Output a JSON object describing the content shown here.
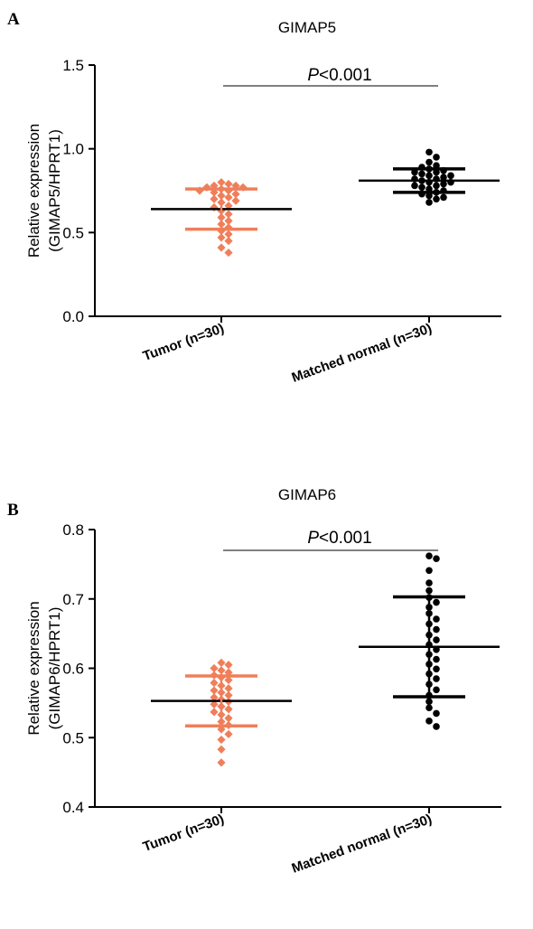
{
  "colors": {
    "tumor": "#ef7f5a",
    "normal": "#000000",
    "axis": "#000000"
  },
  "chart_data": [
    {
      "panel_label": "A",
      "type": "scatter",
      "title": "GIMAP5",
      "ylabel": [
        "Relative expression",
        "(GIMAP5/HPRT1)"
      ],
      "xlabel": "",
      "ylim": [
        0,
        1.5
      ],
      "yticks": [
        "0.0",
        "0.5",
        "1.0",
        "1.5"
      ],
      "ytick_values": [
        0.0,
        0.5,
        1.0,
        1.5
      ],
      "categories": [
        "Tumor (n=30)",
        "Matched normal (n=30)"
      ],
      "significance": {
        "italic": "P",
        "text": "<0.001"
      },
      "grid": false,
      "series": [
        {
          "mean": 0.64,
          "sd_low": 0.52,
          "sd_high": 0.76,
          "marker": "diamond",
          "color": "#ef7f5a",
          "values": [
            0.8,
            0.79,
            0.78,
            0.78,
            0.77,
            0.77,
            0.76,
            0.75,
            0.75,
            0.74,
            0.73,
            0.72,
            0.71,
            0.7,
            0.69,
            0.68,
            0.66,
            0.65,
            0.63,
            0.61,
            0.59,
            0.57,
            0.55,
            0.53,
            0.51,
            0.49,
            0.47,
            0.45,
            0.41,
            0.38
          ]
        },
        {
          "mean": 0.81,
          "sd_low": 0.74,
          "sd_high": 0.88,
          "marker": "circle",
          "color": "#000000",
          "values": [
            0.98,
            0.95,
            0.92,
            0.9,
            0.89,
            0.88,
            0.87,
            0.86,
            0.86,
            0.85,
            0.84,
            0.84,
            0.83,
            0.82,
            0.82,
            0.81,
            0.8,
            0.8,
            0.79,
            0.78,
            0.78,
            0.77,
            0.76,
            0.75,
            0.74,
            0.73,
            0.72,
            0.71,
            0.7,
            0.68
          ]
        }
      ]
    },
    {
      "panel_label": "B",
      "type": "scatter",
      "title": "GIMAP6",
      "ylabel": [
        "Relative expression",
        "(GIMAP6/HPRT1)"
      ],
      "xlabel": "",
      "ylim": [
        0.4,
        0.8
      ],
      "yticks": [
        "0.4",
        "0.5",
        "0.6",
        "0.7",
        "0.8"
      ],
      "ytick_values": [
        0.4,
        0.5,
        0.6,
        0.7,
        0.8
      ],
      "categories": [
        "Tumor (n=30)",
        "Matched normal (n=30)"
      ],
      "significance": {
        "italic": "P",
        "text": "<0.001"
      },
      "grid": false,
      "series": [
        {
          "mean": 0.553,
          "sd_low": 0.517,
          "sd_high": 0.589,
          "marker": "diamond",
          "color": "#ef7f5a",
          "values": [
            0.608,
            0.605,
            0.6,
            0.597,
            0.594,
            0.59,
            0.587,
            0.583,
            0.579,
            0.575,
            0.571,
            0.568,
            0.565,
            0.561,
            0.558,
            0.555,
            0.552,
            0.548,
            0.545,
            0.541,
            0.537,
            0.533,
            0.528,
            0.523,
            0.518,
            0.512,
            0.505,
            0.497,
            0.483,
            0.464
          ]
        },
        {
          "mean": 0.631,
          "sd_low": 0.559,
          "sd_high": 0.703,
          "marker": "circle",
          "color": "#000000",
          "values": [
            0.762,
            0.758,
            0.741,
            0.723,
            0.712,
            0.702,
            0.695,
            0.688,
            0.679,
            0.671,
            0.664,
            0.656,
            0.648,
            0.641,
            0.634,
            0.627,
            0.62,
            0.613,
            0.606,
            0.599,
            0.592,
            0.585,
            0.577,
            0.569,
            0.561,
            0.552,
            0.543,
            0.535,
            0.524,
            0.516
          ]
        }
      ]
    }
  ]
}
